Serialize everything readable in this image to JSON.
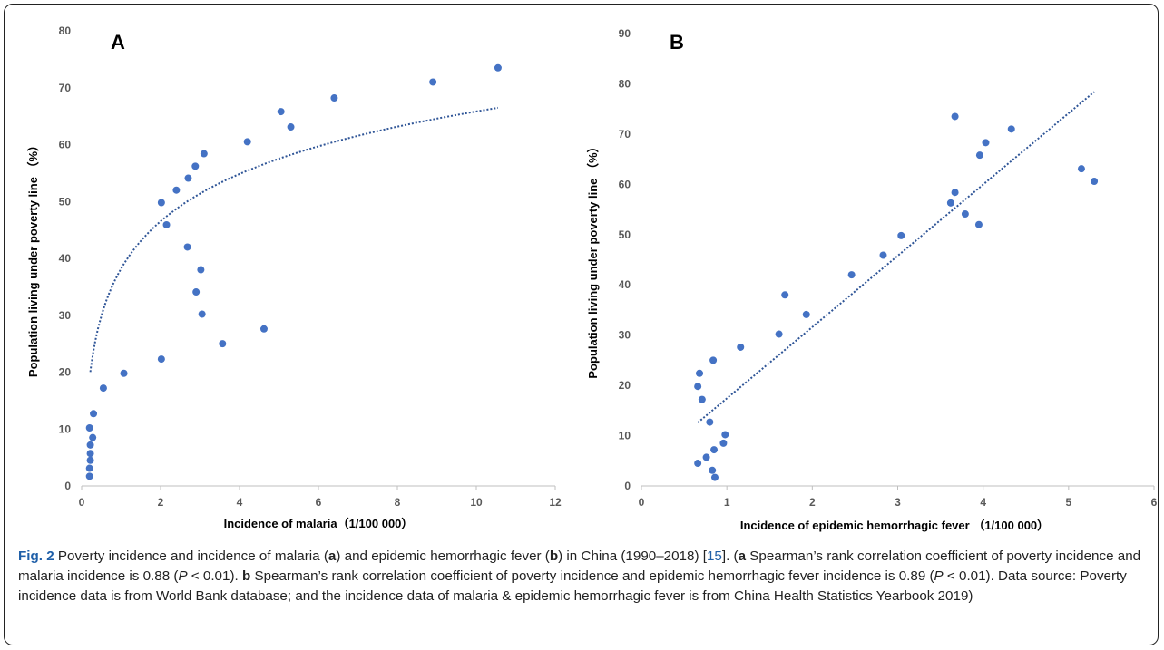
{
  "colors": {
    "point": "#4472c4",
    "trend": "#2f5597",
    "axis": "#bfbfbf"
  },
  "chart_data": [
    {
      "type": "scatter",
      "panel": "A",
      "xlabel": "Incidence of malaria（1/100 000）",
      "ylabel": "Population living under poverty line （%）",
      "xlim": [
        0,
        12
      ],
      "ylim": [
        0,
        80
      ],
      "xticks": [
        0,
        2,
        4,
        6,
        8,
        10,
        12
      ],
      "yticks": [
        0,
        10,
        20,
        30,
        40,
        50,
        60,
        70,
        80
      ],
      "points": [
        [
          10.55,
          73.5
        ],
        [
          8.9,
          71.0
        ],
        [
          6.4,
          68.2
        ],
        [
          5.05,
          65.8
        ],
        [
          5.3,
          63.1
        ],
        [
          4.2,
          60.5
        ],
        [
          3.1,
          58.4
        ],
        [
          2.88,
          56.2
        ],
        [
          2.7,
          54.1
        ],
        [
          2.4,
          52.0
        ],
        [
          2.02,
          49.8
        ],
        [
          2.15,
          45.9
        ],
        [
          2.68,
          42.0
        ],
        [
          3.02,
          38.0
        ],
        [
          2.9,
          34.1
        ],
        [
          3.05,
          30.2
        ],
        [
          4.62,
          27.6
        ],
        [
          3.57,
          25.0
        ],
        [
          2.02,
          22.3
        ],
        [
          1.07,
          19.8
        ],
        [
          0.55,
          17.2
        ],
        [
          0.3,
          12.7
        ],
        [
          0.2,
          10.2
        ],
        [
          0.28,
          8.5
        ],
        [
          0.22,
          7.2
        ],
        [
          0.22,
          5.7
        ],
        [
          0.22,
          4.5
        ],
        [
          0.2,
          3.1
        ],
        [
          0.2,
          1.7
        ]
      ],
      "trendline": {
        "kind": "logarithmic",
        "x_from": 0.22,
        "x_to": 10.55,
        "y_at_x1": 38.2,
        "log_slope": 12.0
      }
    },
    {
      "type": "scatter",
      "panel": "B",
      "xlabel": "Incidence of epidemic hemorrhagic fever （1/100 000）",
      "ylabel": "Population living under poverty line （%）",
      "xlim": [
        0,
        6
      ],
      "ylim": [
        0,
        90
      ],
      "xticks": [
        0,
        1,
        2,
        3,
        4,
        5,
        6
      ],
      "yticks": [
        0,
        10,
        20,
        30,
        40,
        50,
        60,
        70,
        80,
        90
      ],
      "points": [
        [
          3.67,
          73.5
        ],
        [
          4.33,
          71.0
        ],
        [
          4.03,
          68.3
        ],
        [
          3.96,
          65.8
        ],
        [
          5.15,
          63.1
        ],
        [
          5.3,
          60.6
        ],
        [
          3.67,
          58.4
        ],
        [
          3.62,
          56.3
        ],
        [
          3.79,
          54.1
        ],
        [
          3.95,
          52.0
        ],
        [
          3.04,
          49.8
        ],
        [
          2.83,
          45.9
        ],
        [
          2.46,
          42.0
        ],
        [
          1.68,
          38.0
        ],
        [
          1.93,
          34.1
        ],
        [
          1.61,
          30.2
        ],
        [
          1.16,
          27.6
        ],
        [
          0.84,
          25.0
        ],
        [
          0.68,
          22.4
        ],
        [
          0.66,
          19.8
        ],
        [
          0.71,
          17.2
        ],
        [
          0.8,
          12.7
        ],
        [
          0.98,
          10.2
        ],
        [
          0.96,
          8.5
        ],
        [
          0.85,
          7.2
        ],
        [
          0.76,
          5.7
        ],
        [
          0.66,
          4.5
        ],
        [
          0.83,
          3.1
        ],
        [
          0.86,
          1.7
        ]
      ],
      "trendline": {
        "kind": "linear",
        "x_from": 0.66,
        "x_to": 5.3,
        "y_from": 12.6,
        "y_to": 78.4
      }
    }
  ],
  "caption": {
    "label": "Fig. 2",
    "text1": " Poverty incidence and incidence of malaria (",
    "a1": "a",
    "text2": ") and epidemic hemorrhagic fever (",
    "b1": "b",
    "text3": ") in China (1990–2018) [",
    "ref": "15",
    "text4": "]. (",
    "a2": "a",
    "text5": " Spearman’s rank correlation coefficient of poverty incidence and malaria incidence is 0.88 (",
    "p1": "P",
    "text6": " < 0.01). ",
    "b2": "b",
    "text7": " Spearman’s rank correlation coefficient of poverty incidence and epidemic hemorrhagic fever incidence is 0.89 (",
    "p2": "P",
    "text8": " < 0.01). Data source: Poverty incidence data is from World Bank database; and the incidence data of malaria & epidemic hemorrhagic fever is from China Health Statistics Yearbook 2019)"
  }
}
